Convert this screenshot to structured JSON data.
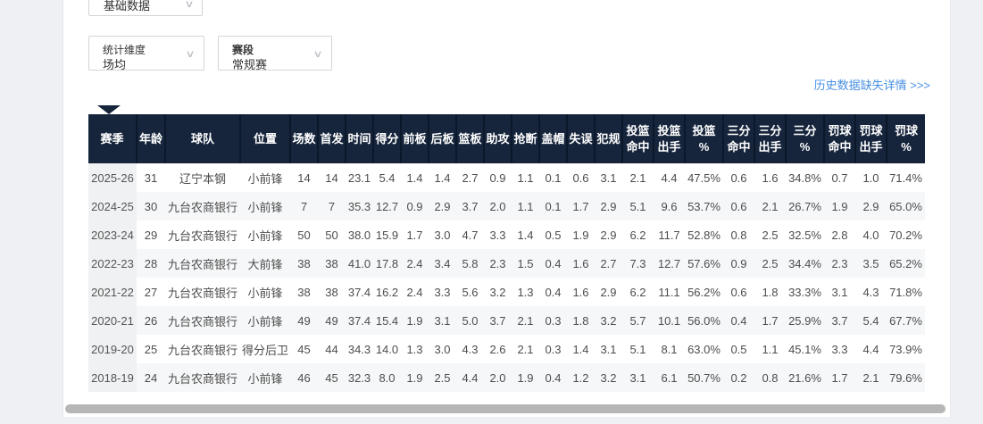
{
  "colors": {
    "page_bg": "#eef0f4",
    "table_header_bg": "#16253c",
    "link_blue": "#4a90e2",
    "alt_row_bg": "#f6f7f8",
    "season_col_bg": "#f0f1f2"
  },
  "filters": {
    "data_type": {
      "value": "基础数据",
      "caret": "∨"
    },
    "dimension": {
      "label": "统计维度",
      "value": "场均",
      "caret": "∨"
    },
    "stage": {
      "label": "赛段",
      "value": "常规赛",
      "caret": "∨"
    }
  },
  "links": {
    "history_missing": "历史数据缺失详情 >>>"
  },
  "table": {
    "columns": [
      "赛季",
      "年龄",
      "球队",
      "位置",
      "场数",
      "首发",
      "时间",
      "得分",
      "前板",
      "后板",
      "篮板",
      "助攻",
      "抢断",
      "盖帽",
      "失误",
      "犯规",
      "投篮\n命中",
      "投篮\n出手",
      "投篮\n%",
      "三分\n命中",
      "三分\n出手",
      "三分\n%",
      "罚球\n命中",
      "罚球\n出手",
      "罚球\n%"
    ],
    "rows": [
      [
        "2025-26",
        "31",
        "辽宁本钢",
        "小前锋",
        "14",
        "14",
        "23.1",
        "5.4",
        "1.4",
        "1.4",
        "2.7",
        "0.9",
        "1.1",
        "0.1",
        "0.6",
        "3.1",
        "2.1",
        "4.4",
        "47.5%",
        "0.6",
        "1.6",
        "34.8%",
        "0.7",
        "1.0",
        "71.4%"
      ],
      [
        "2024-25",
        "30",
        "九台农商银行",
        "小前锋",
        "7",
        "7",
        "35.3",
        "12.7",
        "0.9",
        "2.9",
        "3.7",
        "2.0",
        "1.1",
        "0.1",
        "1.7",
        "2.9",
        "5.1",
        "9.6",
        "53.7%",
        "0.6",
        "2.1",
        "26.7%",
        "1.9",
        "2.9",
        "65.0%"
      ],
      [
        "2023-24",
        "29",
        "九台农商银行",
        "小前锋",
        "50",
        "50",
        "38.0",
        "15.9",
        "1.7",
        "3.0",
        "4.7",
        "3.3",
        "1.4",
        "0.5",
        "1.9",
        "2.9",
        "6.2",
        "11.7",
        "52.8%",
        "0.8",
        "2.5",
        "32.5%",
        "2.8",
        "4.0",
        "70.2%"
      ],
      [
        "2022-23",
        "28",
        "九台农商银行",
        "大前锋",
        "38",
        "38",
        "41.0",
        "17.8",
        "2.4",
        "3.4",
        "5.8",
        "2.3",
        "1.5",
        "0.4",
        "1.6",
        "2.7",
        "7.3",
        "12.7",
        "57.6%",
        "0.9",
        "2.5",
        "34.4%",
        "2.3",
        "3.5",
        "65.2%"
      ],
      [
        "2021-22",
        "27",
        "九台农商银行",
        "小前锋",
        "38",
        "38",
        "37.4",
        "16.2",
        "2.4",
        "3.3",
        "5.6",
        "3.2",
        "1.3",
        "0.4",
        "1.6",
        "2.9",
        "6.2",
        "11.1",
        "56.2%",
        "0.6",
        "1.8",
        "33.3%",
        "3.1",
        "4.3",
        "71.8%"
      ],
      [
        "2020-21",
        "26",
        "九台农商银行",
        "小前锋",
        "49",
        "49",
        "37.4",
        "15.4",
        "1.9",
        "3.1",
        "5.0",
        "3.7",
        "2.1",
        "0.3",
        "1.8",
        "3.2",
        "5.7",
        "10.1",
        "56.0%",
        "0.4",
        "1.7",
        "25.9%",
        "3.7",
        "5.4",
        "67.7%"
      ],
      [
        "2019-20",
        "25",
        "九台农商银行",
        "得分后卫",
        "45",
        "44",
        "34.3",
        "14.0",
        "1.3",
        "3.0",
        "4.3",
        "2.6",
        "2.1",
        "0.3",
        "1.4",
        "3.1",
        "5.1",
        "8.1",
        "63.0%",
        "0.5",
        "1.1",
        "45.1%",
        "3.3",
        "4.4",
        "73.9%"
      ],
      [
        "2018-19",
        "24",
        "九台农商银行",
        "小前锋",
        "46",
        "45",
        "32.3",
        "8.0",
        "1.9",
        "2.5",
        "4.4",
        "2.0",
        "1.9",
        "0.4",
        "1.2",
        "3.2",
        "3.1",
        "6.1",
        "50.7%",
        "0.2",
        "0.8",
        "21.6%",
        "1.7",
        "2.1",
        "79.6%"
      ]
    ]
  }
}
